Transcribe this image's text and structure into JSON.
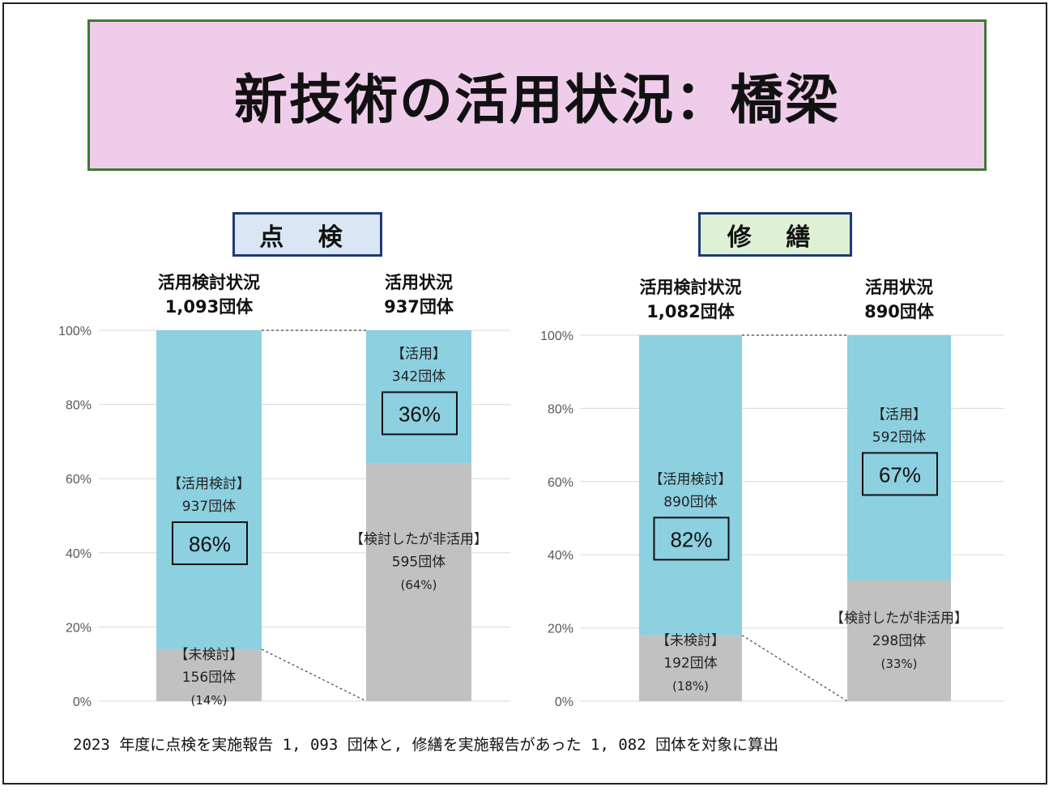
{
  "title": "新技術の活用状況：橋梁",
  "sections": {
    "left": "点 検",
    "right": "修 繕"
  },
  "footnote": "2023 年度に点検を実施報告 1, 093 団体と, 修繕を実施報告があった 1, 082 団体を対象に算出",
  "colors": {
    "used": "#8dd0e0",
    "other": "#c1c1c1",
    "title_bg": "#efcdea",
    "title_border": "#3f7a32"
  },
  "chart_data": [
    {
      "type": "bar",
      "stacked": true,
      "ylim": [
        0,
        100
      ],
      "yticks": [
        "0%",
        "20%",
        "40%",
        "60%",
        "80%",
        "100%"
      ],
      "grid": true,
      "bars": [
        {
          "title1": "活用検討状況",
          "title2": "1,093団体",
          "bottom": {
            "value": 14,
            "label1": "【未検討】",
            "label2": "156団体",
            "label3": "(14%)"
          },
          "top": {
            "value": 86,
            "label1": "【活用検討】",
            "label2": "937団体",
            "pct": "86%"
          }
        },
        {
          "title1": "活用状況",
          "title2": "937団体",
          "bottom": {
            "value": 64,
            "label1": "【検討したが非活用】",
            "label2": "595団体",
            "label3": "(64%)"
          },
          "top": {
            "value": 36,
            "label1": "【活用】",
            "label2": "342団体",
            "pct": "36%"
          }
        }
      ]
    },
    {
      "type": "bar",
      "stacked": true,
      "ylim": [
        0,
        100
      ],
      "yticks": [
        "0%",
        "20%",
        "40%",
        "60%",
        "80%",
        "100%"
      ],
      "grid": true,
      "bars": [
        {
          "title1": "活用検討状況",
          "title2": "1,082団体",
          "bottom": {
            "value": 18,
            "label1": "【未検討】",
            "label2": "192団体",
            "label3": "(18%)"
          },
          "top": {
            "value": 82,
            "label1": "【活用検討】",
            "label2": "890団体",
            "pct": "82%"
          }
        },
        {
          "title1": "活用状況",
          "title2": "890団体",
          "bottom": {
            "value": 33,
            "label1": "【検討したが非活用】",
            "label2": "298団体",
            "label3": "(33%)"
          },
          "top": {
            "value": 67,
            "label1": "【活用】",
            "label2": "592団体",
            "pct": "67%"
          }
        }
      ]
    }
  ]
}
